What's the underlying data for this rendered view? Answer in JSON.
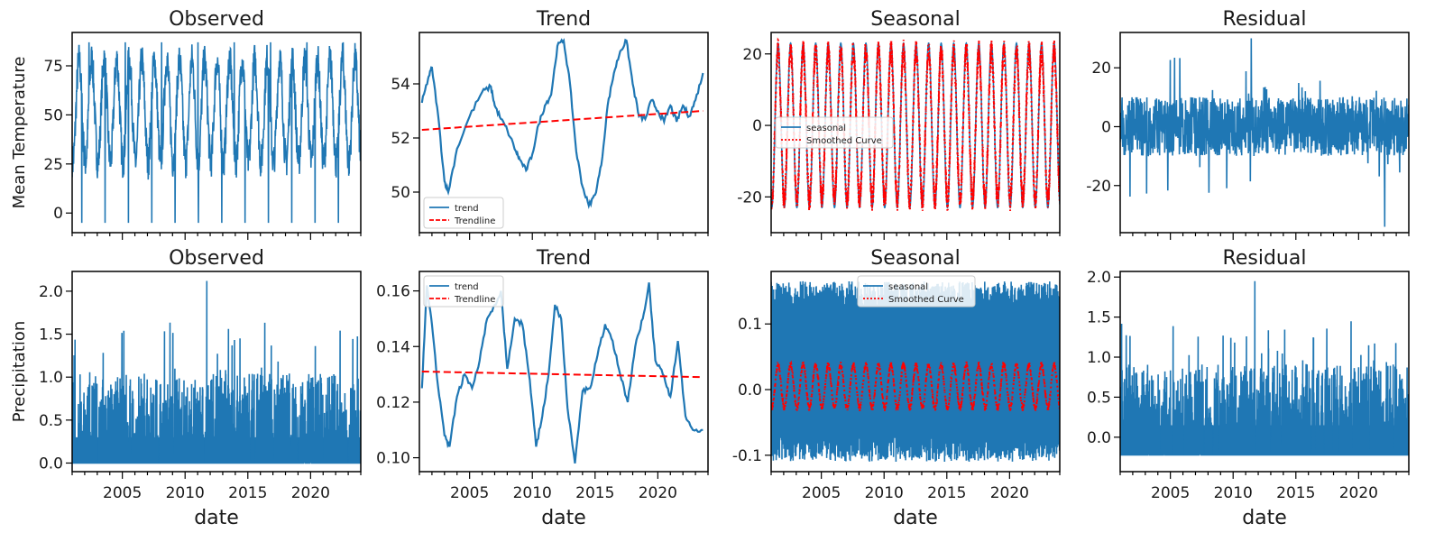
{
  "figure": {
    "row_labels": [
      "Mean Temperature",
      "Precipitation"
    ],
    "x_axis_label": "date"
  },
  "chart_data": [
    {
      "type": "line",
      "title": "Observed",
      "ylabel": "Mean Temperature",
      "xlabel": "",
      "xlim": [
        2001,
        2024
      ],
      "ylim": [
        -10,
        92
      ],
      "yticks": [
        0,
        25,
        50,
        75
      ],
      "xticks": [
        2005,
        2010,
        2015,
        2020
      ],
      "show_xtick_labels": false,
      "grid": false,
      "series": [
        {
          "kind": "seasonal_signal",
          "color": "#1f77b4",
          "mean": 52,
          "amplitude": 26,
          "noise": 9,
          "min": -5,
          "max": 87
        }
      ]
    },
    {
      "type": "line",
      "title": "Trend",
      "ylabel": "",
      "xlabel": "",
      "xlim": [
        2001,
        2024
      ],
      "ylim": [
        48.5,
        55.9
      ],
      "yticks": [
        50,
        52,
        54
      ],
      "xticks": [
        2005,
        2010,
        2015,
        2020
      ],
      "show_xtick_labels": false,
      "grid": false,
      "legend": {
        "position": "lower-left",
        "entries": [
          "trend",
          "Trendline"
        ]
      },
      "series": [
        {
          "name": "trend",
          "kind": "line",
          "color": "#1f77b4",
          "x": [
            2001.2,
            2001.7,
            2002.0,
            2002.5,
            2003.0,
            2003.3,
            2004.0,
            2005.0,
            2006.0,
            2006.7,
            2007.0,
            2007.5,
            2008.0,
            2008.7,
            2009.0,
            2009.5,
            2010.0,
            2010.5,
            2011.0,
            2011.5,
            2012.0,
            2012.5,
            2013.0,
            2013.5,
            2014.0,
            2014.5,
            2015.0,
            2015.5,
            2016.0,
            2016.5,
            2017.0,
            2017.5,
            2018.0,
            2018.5,
            2019.0,
            2019.5,
            2020.0,
            2020.5,
            2021.0,
            2021.5,
            2022.0,
            2022.5,
            2023.0,
            2023.6
          ],
          "y": [
            53.3,
            54.2,
            54.6,
            52.8,
            50.4,
            50.0,
            51.6,
            52.8,
            53.7,
            53.9,
            53.2,
            52.7,
            52.3,
            51.5,
            51.2,
            50.8,
            51.4,
            52.5,
            53.2,
            53.6,
            55.4,
            55.6,
            54.0,
            51.5,
            50.2,
            49.5,
            49.9,
            51.0,
            53.2,
            54.4,
            55.2,
            55.6,
            54.0,
            52.8,
            52.7,
            53.4,
            53.0,
            52.6,
            53.2,
            52.6,
            53.2,
            52.8,
            53.4,
            54.4
          ]
        },
        {
          "name": "Trendline",
          "kind": "line",
          "style": "dashed",
          "color": "#ff0000",
          "x": [
            2001.2,
            2023.6
          ],
          "y": [
            52.3,
            53.0
          ]
        }
      ]
    },
    {
      "type": "line",
      "title": "Seasonal",
      "ylabel": "",
      "xlabel": "",
      "xlim": [
        2001,
        2024
      ],
      "ylim": [
        -30,
        26
      ],
      "yticks": [
        -20,
        0,
        20
      ],
      "xticks": [
        2005,
        2010,
        2015,
        2020
      ],
      "show_xtick_labels": false,
      "grid": false,
      "legend": {
        "position": "center-left",
        "entries": [
          "seasonal",
          "Smoothed Curve"
        ]
      },
      "series": [
        {
          "name": "seasonal",
          "kind": "periodic",
          "color": "#1f77b4",
          "amplitude": 23,
          "period": 1
        },
        {
          "name": "Smoothed Curve",
          "kind": "periodic",
          "style": "dotted",
          "color": "#ff0000",
          "amplitude": 21,
          "period": 1
        }
      ]
    },
    {
      "type": "line",
      "title": "Residual",
      "ylabel": "",
      "xlabel": "",
      "xlim": [
        2001,
        2024
      ],
      "ylim": [
        -36,
        32
      ],
      "yticks": [
        -20,
        0,
        20
      ],
      "xticks": [
        2005,
        2010,
        2015,
        2020
      ],
      "show_xtick_labels": false,
      "grid": false,
      "series": [
        {
          "name": "residual",
          "kind": "noise",
          "color": "#1f77b4",
          "center": 0,
          "spread": 10,
          "min": -34,
          "max": 30
        }
      ]
    },
    {
      "type": "line",
      "title": "Observed",
      "ylabel": "Precipitation",
      "xlabel": "date",
      "xlim": [
        2001,
        2024
      ],
      "ylim": [
        -0.1,
        2.23
      ],
      "yticks": [
        0.0,
        0.5,
        1.0,
        1.5,
        2.0
      ],
      "ytick_format": 1,
      "xticks": [
        2005,
        2010,
        2015,
        2020
      ],
      "show_xtick_labels": true,
      "grid": false,
      "series": [
        {
          "name": "observed",
          "kind": "spiky",
          "color": "#1f77b4",
          "base": 0,
          "fill_to": 0.3,
          "max": 2.12
        }
      ]
    },
    {
      "type": "line",
      "title": "Trend",
      "ylabel": "",
      "xlabel": "date",
      "xlim": [
        2001,
        2024
      ],
      "ylim": [
        0.095,
        0.167
      ],
      "yticks": [
        0.1,
        0.12,
        0.14,
        0.16
      ],
      "ytick_format": 2,
      "xticks": [
        2005,
        2010,
        2015,
        2020
      ],
      "show_xtick_labels": true,
      "grid": false,
      "legend": {
        "position": "upper-left",
        "entries": [
          "trend",
          "Trendline"
        ]
      },
      "series": [
        {
          "name": "trend",
          "kind": "line",
          "color": "#1f77b4",
          "x": [
            2001.2,
            2001.6,
            2002.0,
            2002.5,
            2003.0,
            2003.4,
            2004.0,
            2004.6,
            2005.2,
            2005.8,
            2006.4,
            2007.0,
            2007.5,
            2008.0,
            2008.6,
            2009.2,
            2009.8,
            2010.3,
            2010.8,
            2011.3,
            2011.8,
            2012.3,
            2012.8,
            2013.4,
            2014.0,
            2014.6,
            2015.2,
            2015.8,
            2016.4,
            2017.0,
            2017.6,
            2018.2,
            2018.8,
            2019.3,
            2019.8,
            2020.4,
            2021.0,
            2021.6,
            2022.2,
            2022.8,
            2023.6
          ],
          "y": [
            0.125,
            0.162,
            0.148,
            0.125,
            0.108,
            0.104,
            0.122,
            0.13,
            0.125,
            0.135,
            0.15,
            0.155,
            0.16,
            0.132,
            0.15,
            0.148,
            0.128,
            0.104,
            0.115,
            0.13,
            0.155,
            0.15,
            0.118,
            0.098,
            0.124,
            0.125,
            0.137,
            0.148,
            0.142,
            0.13,
            0.12,
            0.14,
            0.15,
            0.163,
            0.135,
            0.13,
            0.122,
            0.142,
            0.115,
            0.11,
            0.11
          ]
        },
        {
          "name": "Trendline",
          "kind": "line",
          "style": "dashed",
          "color": "#ff0000",
          "x": [
            2001.2,
            2023.6
          ],
          "y": [
            0.131,
            0.129
          ]
        }
      ]
    },
    {
      "type": "line",
      "title": "Seasonal",
      "ylabel": "",
      "xlabel": "date",
      "xlim": [
        2001,
        2024
      ],
      "ylim": [
        -0.125,
        0.18
      ],
      "yticks": [
        -0.1,
        0.0,
        0.1
      ],
      "ytick_format": 1,
      "xticks": [
        2005,
        2010,
        2015,
        2020
      ],
      "show_xtick_labels": true,
      "grid": false,
      "legend": {
        "position": "upper-center",
        "entries": [
          "seasonal",
          "Smoothed Curve"
        ]
      },
      "series": [
        {
          "name": "seasonal",
          "kind": "band",
          "color": "#1f77b4",
          "low": -0.11,
          "high": 0.165
        },
        {
          "name": "Smoothed Curve",
          "kind": "periodic",
          "style": "dotted",
          "color": "#ff0000",
          "center": 0.005,
          "amplitude": 0.033,
          "period": 1
        }
      ]
    },
    {
      "type": "line",
      "title": "Residual",
      "ylabel": "",
      "xlabel": "date",
      "xlim": [
        2001,
        2024
      ],
      "ylim": [
        -0.43,
        2.07
      ],
      "yticks": [
        0.0,
        0.5,
        1.0,
        1.5,
        2.0
      ],
      "ytick_format": 1,
      "xticks": [
        2005,
        2010,
        2015,
        2020
      ],
      "show_xtick_labels": true,
      "grid": false,
      "series": [
        {
          "name": "residual",
          "kind": "spiky",
          "color": "#1f77b4",
          "base": -0.22,
          "fill_to": 0.15,
          "max": 1.95
        }
      ]
    }
  ]
}
